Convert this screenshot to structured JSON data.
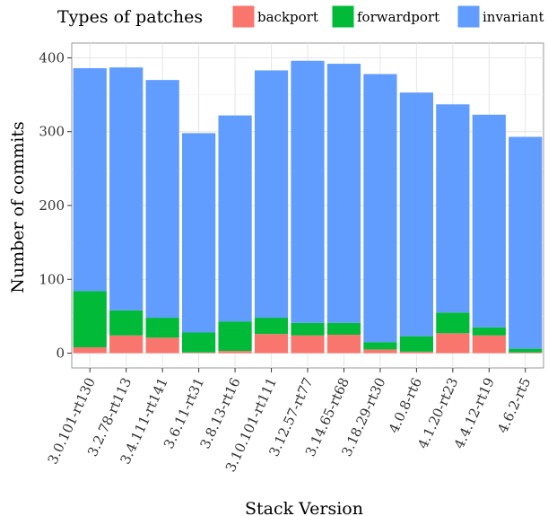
{
  "chart_data": {
    "type": "bar",
    "stacked": true,
    "title": "",
    "xlabel": "Stack Version",
    "ylabel": "Number of commits",
    "ylim": [
      0,
      400
    ],
    "yticks": [
      0,
      100,
      200,
      300,
      400
    ],
    "grid": true,
    "legend_position": "top",
    "legend_title": "Types of patches",
    "categories": [
      "3.0.101-rt130",
      "3.2.78-rt113",
      "3.4.111-rt141",
      "3.6.11-rt31",
      "3.8.13-rt16",
      "3.10.101-rt111",
      "3.12.57-rt77",
      "3.14.65-rt68",
      "3.18.29-rt30",
      "4.0.8-rt6",
      "4.1.20-rt23",
      "4.4.12-rt19",
      "4.6.2-rt5"
    ],
    "series": [
      {
        "name": "backport",
        "color": "#F8766D",
        "values": [
          8,
          24,
          21,
          1,
          3,
          26,
          24,
          25,
          5,
          2,
          27,
          24,
          1
        ]
      },
      {
        "name": "forwardport",
        "color": "#00BA38",
        "values": [
          76,
          34,
          27,
          27,
          40,
          22,
          17,
          16,
          10,
          21,
          28,
          11,
          5
        ]
      },
      {
        "name": "invariant",
        "color": "#619CFF",
        "values": [
          302,
          329,
          322,
          270,
          279,
          335,
          355,
          351,
          363,
          330,
          282,
          288,
          287
        ]
      }
    ]
  }
}
